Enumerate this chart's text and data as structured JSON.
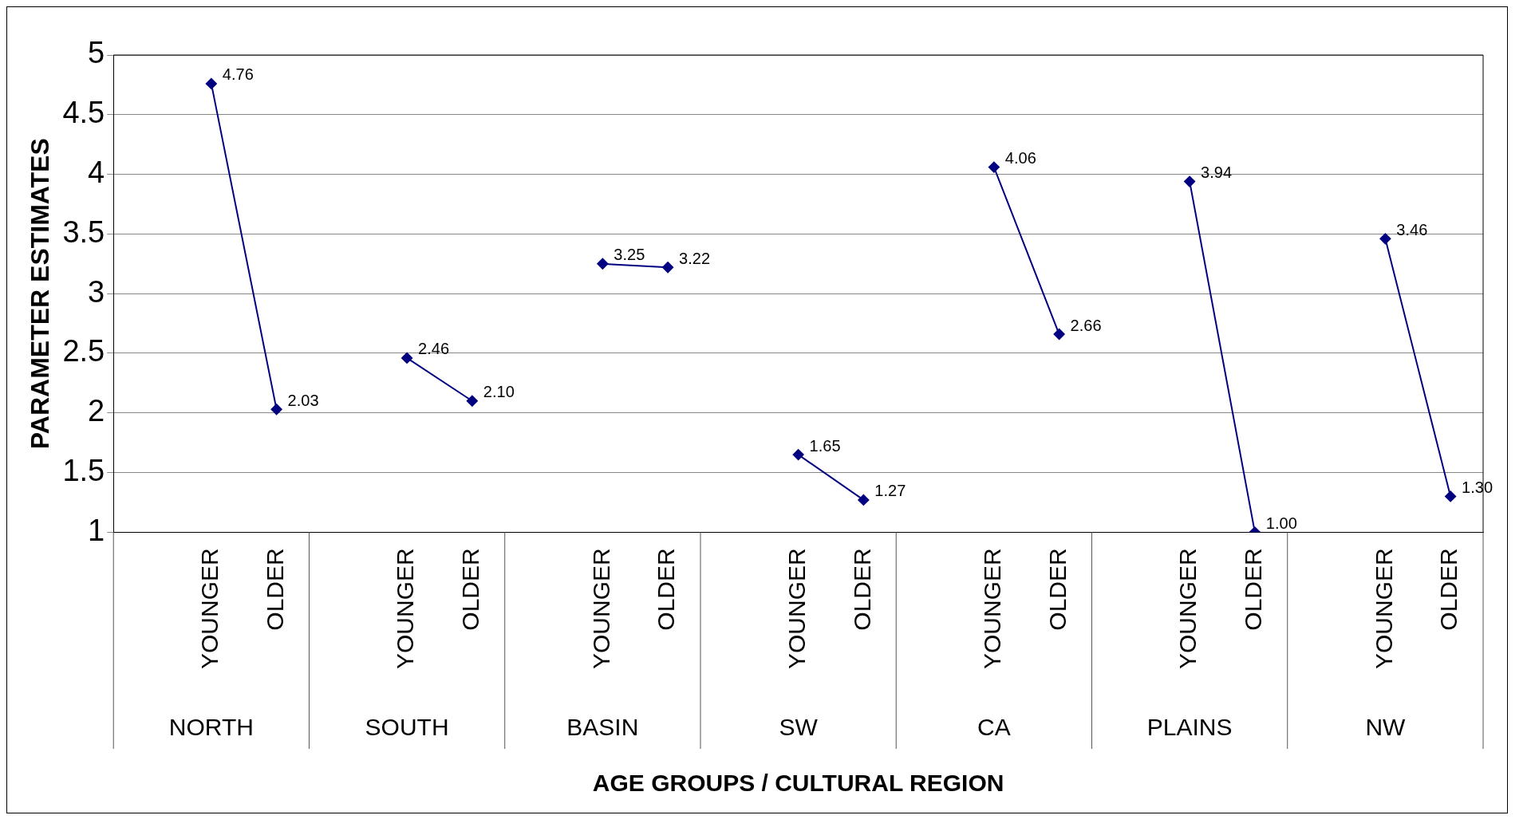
{
  "chart_data": {
    "type": "line",
    "xlabel": "AGE GROUPS / CULTURAL REGION",
    "ylabel": "PARAMETER ESTIMATES",
    "categories": [
      null,
      "YOUNGER",
      "OLDER",
      null,
      "YOUNGER",
      "OLDER",
      null,
      "YOUNGER",
      "OLDER",
      null,
      "YOUNGER",
      "OLDER",
      null,
      "YOUNGER",
      "OLDER",
      null,
      "YOUNGER",
      "OLDER",
      null,
      "YOUNGER",
      "OLDER"
    ],
    "series": [
      {
        "color": "#000080",
        "values": [
          null,
          4.76,
          2.03,
          null,
          2.46,
          2.1,
          null,
          3.25,
          3.22,
          null,
          1.65,
          1.27,
          null,
          4.06,
          2.66,
          null,
          3.94,
          1.0,
          null,
          3.46,
          1.3
        ],
        "value_labels": [
          null,
          "4.76",
          "2.03",
          null,
          "2.46",
          "2.10",
          null,
          "3.25",
          "3.22",
          null,
          "1.65",
          "1.27",
          null,
          "4.06",
          "2.66",
          null,
          "3.94",
          "1.00",
          null,
          "3.46",
          "1.30"
        ]
      }
    ],
    "annotations": [
      "NORTH",
      "SOUTH",
      "BASIN",
      "SW",
      "CA",
      "PLAINS",
      "NW"
    ],
    "ylim": [
      1,
      5
    ],
    "yticks": [
      1,
      1.5,
      2,
      2.5,
      3,
      3.5,
      4,
      4.5,
      5
    ],
    "grid": "y",
    "legend": false,
    "marker": "diamond",
    "line_style": "solid"
  }
}
